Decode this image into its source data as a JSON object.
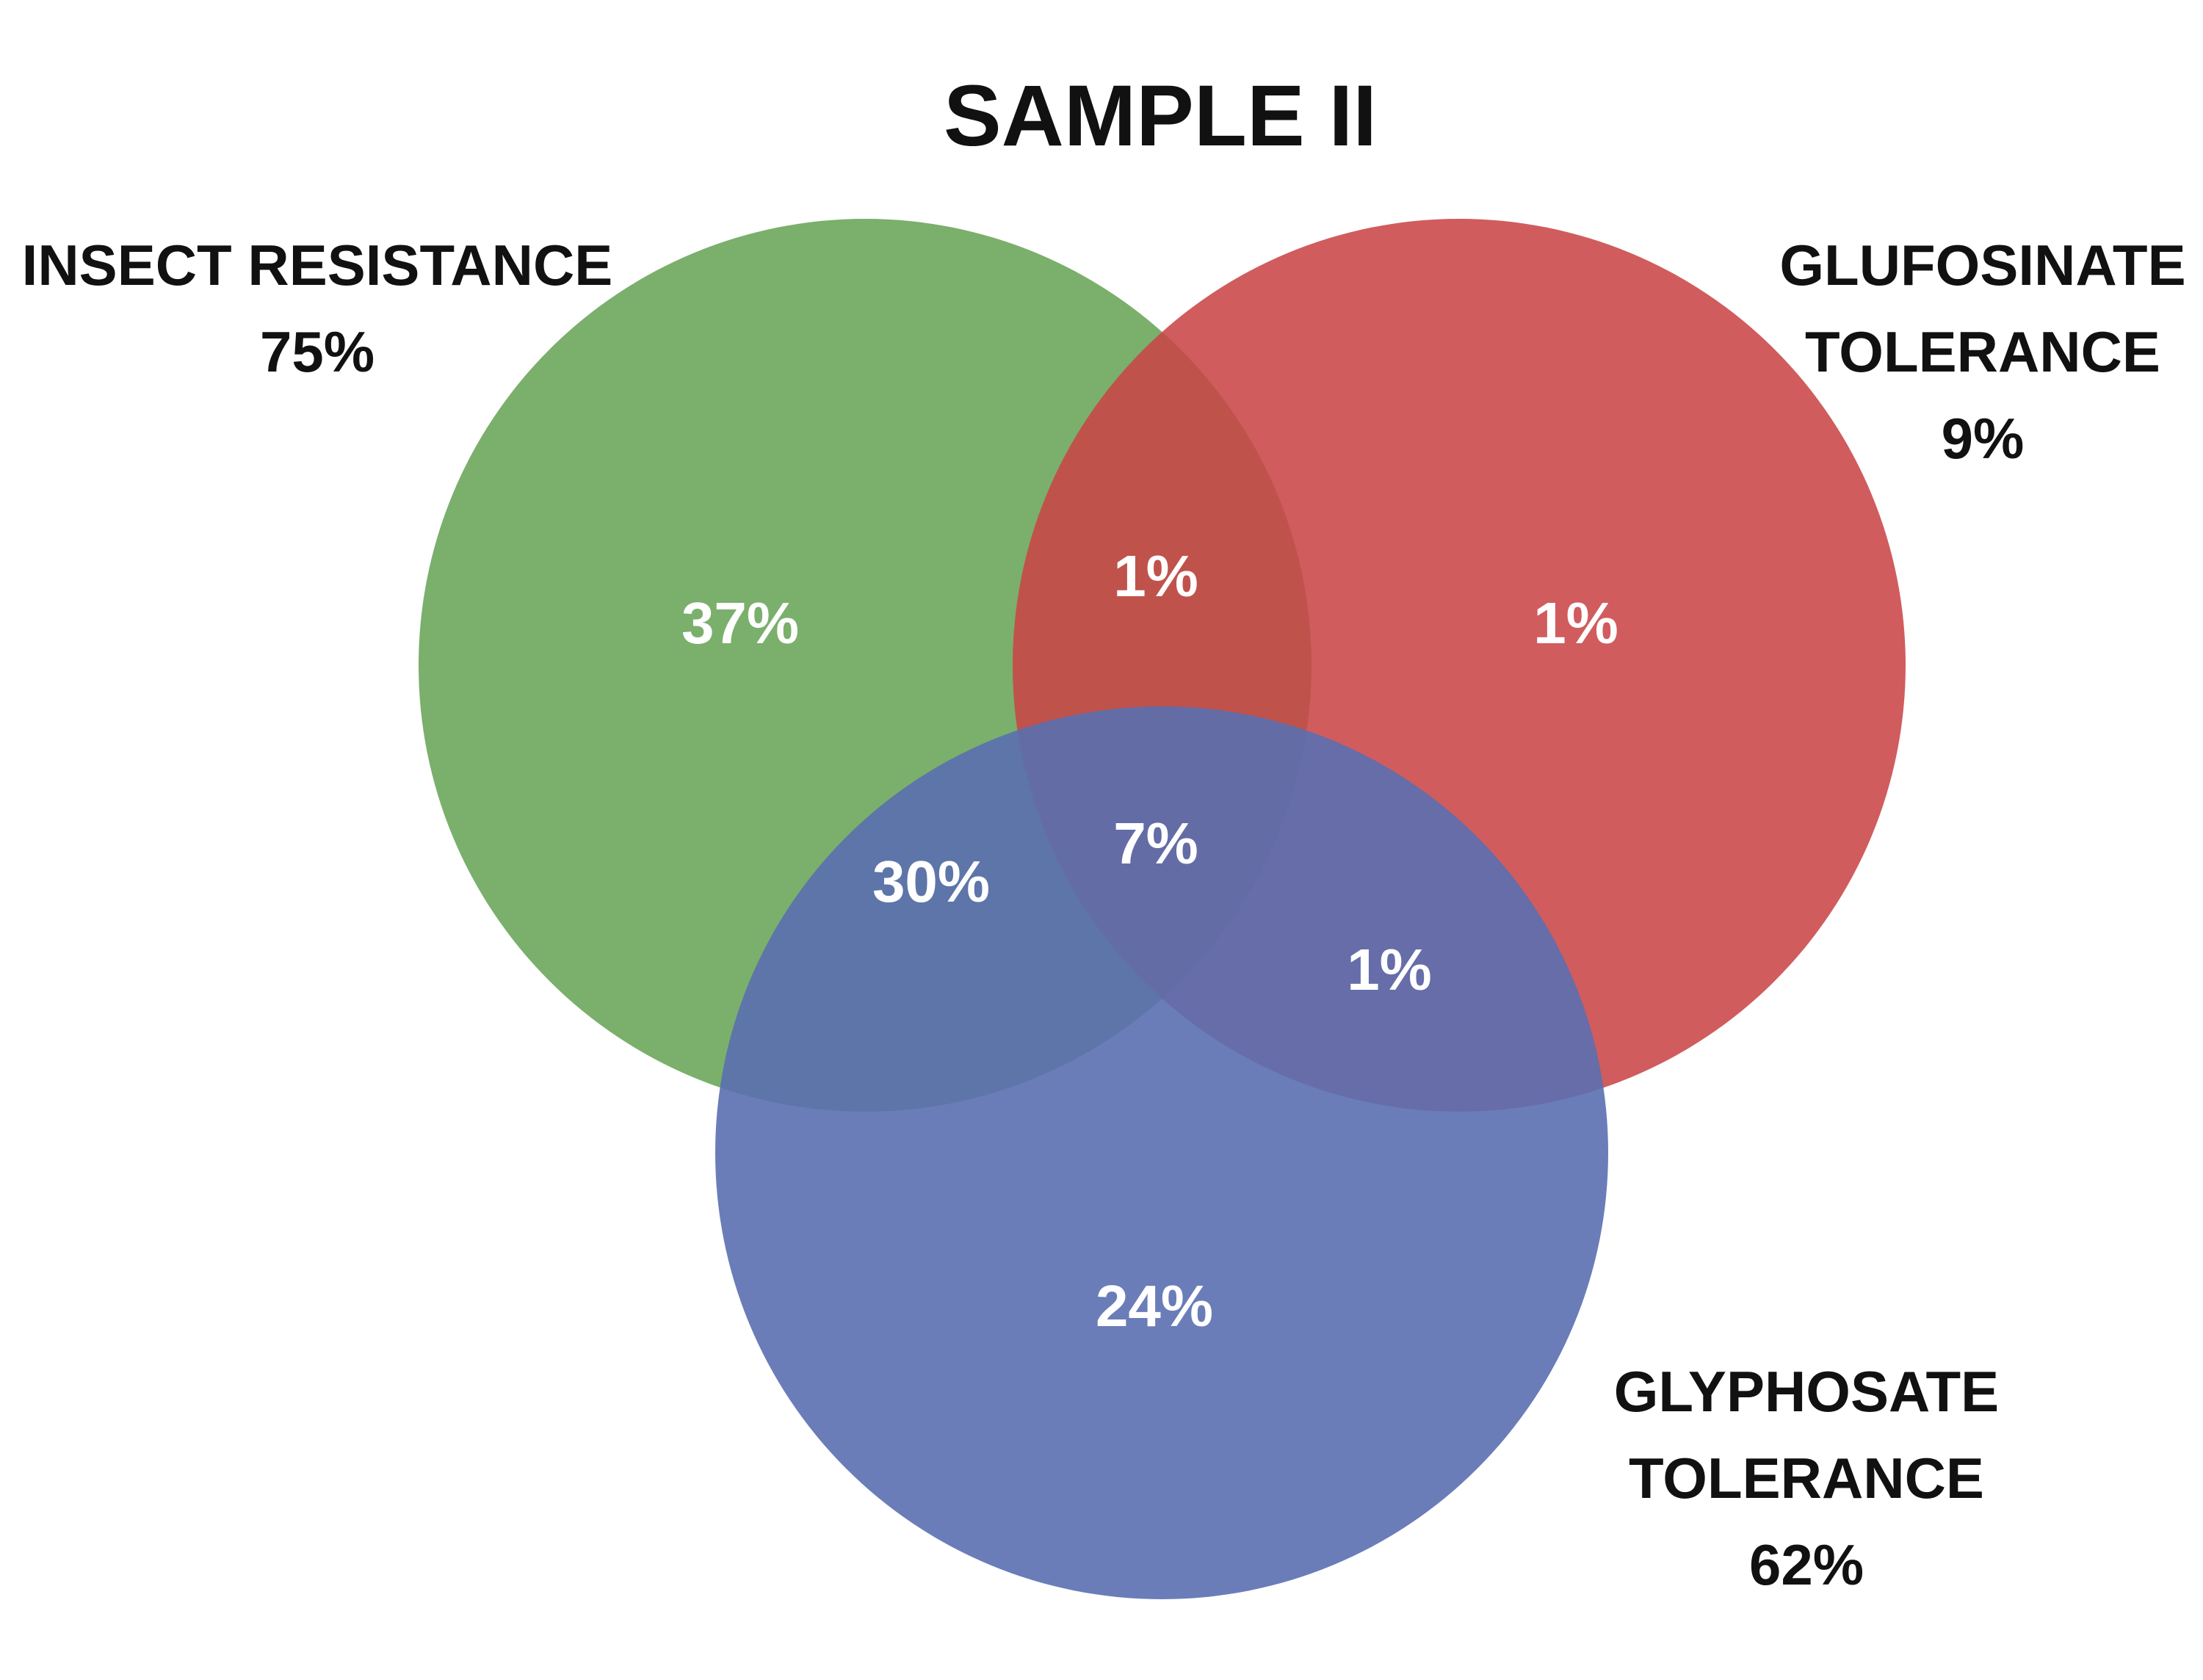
{
  "title": "SAMPLE II",
  "sets": {
    "insect": {
      "name_lines": [
        "INSECT RESISTANCE"
      ],
      "total": "75%",
      "color": "#70a85f"
    },
    "glufosinate": {
      "name_lines": [
        "GLUFOSINATE",
        "TOLERANCE"
      ],
      "total": "9%",
      "color": "#c94548"
    },
    "glyphosate": {
      "name_lines": [
        "GLYPHOSATE",
        "TOLERANCE"
      ],
      "total": "62%",
      "color": "#5a6fb0"
    }
  },
  "regions": {
    "insect_only": "37%",
    "glufosinate_only": "1%",
    "glyphosate_only": "24%",
    "insect_glufosinate": "1%",
    "insect_glyphosate": "30%",
    "glufosinate_glyphosate": "1%",
    "all_three": "7%"
  }
}
